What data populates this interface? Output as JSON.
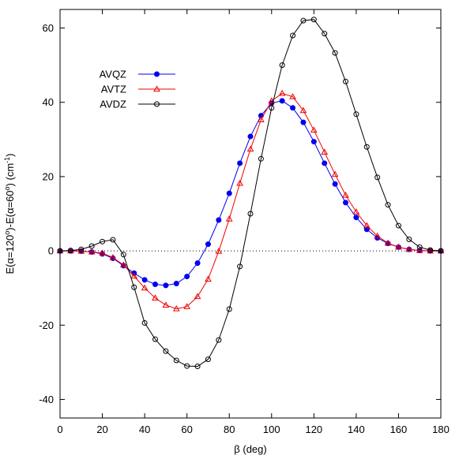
{
  "chart_data": {
    "type": "line",
    "title": "",
    "xlabel": "β (deg)",
    "ylabel": {
      "parts": [
        {
          "text": "E(α=120",
          "sup": false
        },
        {
          "text": "o",
          "sup": true
        },
        {
          "text": ")-E(α=60",
          "sup": false
        },
        {
          "text": "o",
          "sup": true
        },
        {
          "text": ") (cm",
          "sup": false
        },
        {
          "text": "-1",
          "sup": true
        },
        {
          "text": ")",
          "sup": false
        }
      ]
    },
    "xlim": [
      0,
      180
    ],
    "ylim": [
      -45,
      65
    ],
    "xticks": [
      0,
      20,
      40,
      60,
      80,
      100,
      120,
      140,
      160,
      180
    ],
    "yticks": [
      -40,
      -20,
      0,
      20,
      40,
      60
    ],
    "zero_line": "dotted",
    "legend_position": "top-left",
    "series": [
      {
        "name": "AVQZ",
        "color": "#0000ee",
        "marker": "filled-circle",
        "x": [
          0,
          5,
          10,
          15,
          20,
          25,
          30,
          35,
          40,
          45,
          50,
          55,
          60,
          65,
          70,
          75,
          80,
          85,
          90,
          95,
          100,
          105,
          110,
          115,
          120,
          125,
          130,
          135,
          140,
          145,
          150,
          155,
          160,
          165,
          170,
          175,
          180
        ],
        "values": [
          0,
          0,
          -0.1,
          -0.3,
          -0.8,
          -2.0,
          -4.0,
          -6.0,
          -7.8,
          -9.0,
          -9.3,
          -8.8,
          -6.9,
          -3.3,
          1.8,
          8.3,
          15.5,
          23.6,
          30.8,
          36.4,
          39.8,
          40.4,
          38.5,
          34.6,
          29.4,
          23.6,
          18.0,
          13.0,
          9.0,
          5.8,
          3.5,
          2.0,
          1.0,
          0.4,
          0.1,
          0,
          0
        ]
      },
      {
        "name": "AVTZ",
        "color": "#ee0000",
        "marker": "open-triangle",
        "x": [
          0,
          5,
          10,
          15,
          20,
          25,
          30,
          35,
          40,
          45,
          50,
          55,
          60,
          65,
          70,
          75,
          80,
          85,
          90,
          95,
          100,
          105,
          110,
          115,
          120,
          125,
          130,
          135,
          140,
          145,
          150,
          155,
          160,
          165,
          170,
          175,
          180
        ],
        "values": [
          0,
          0,
          -0.1,
          -0.3,
          -0.6,
          -1.8,
          -3.8,
          -6.8,
          -10.0,
          -12.7,
          -14.6,
          -15.6,
          -15.0,
          -12.3,
          -7.6,
          -0.1,
          8.6,
          18.2,
          27.4,
          35.3,
          40.4,
          42.4,
          41.5,
          37.8,
          32.5,
          26.6,
          20.6,
          15.0,
          10.5,
          6.8,
          4.0,
          2.1,
          1.0,
          0.4,
          0.1,
          0,
          0
        ]
      },
      {
        "name": "AVDZ",
        "color": "#000000",
        "marker": "open-circle",
        "x": [
          0,
          5,
          10,
          15,
          20,
          25,
          30,
          35,
          40,
          45,
          50,
          55,
          60,
          65,
          70,
          75,
          80,
          85,
          90,
          95,
          100,
          105,
          110,
          115,
          120,
          125,
          130,
          135,
          140,
          145,
          150,
          155,
          160,
          165,
          170,
          175,
          180
        ],
        "values": [
          0,
          0.1,
          0.4,
          1.3,
          2.5,
          3.0,
          -1.0,
          -9.8,
          -19.4,
          -23.8,
          -27.0,
          -29.5,
          -31.0,
          -31.1,
          -29.2,
          -24.0,
          -15.7,
          -4.2,
          10.0,
          24.8,
          38.5,
          50.0,
          58.0,
          62.0,
          62.3,
          58.5,
          53.3,
          45.6,
          36.8,
          28.0,
          19.8,
          12.4,
          6.8,
          3.1,
          1.0,
          0.2,
          0
        ]
      }
    ]
  }
}
